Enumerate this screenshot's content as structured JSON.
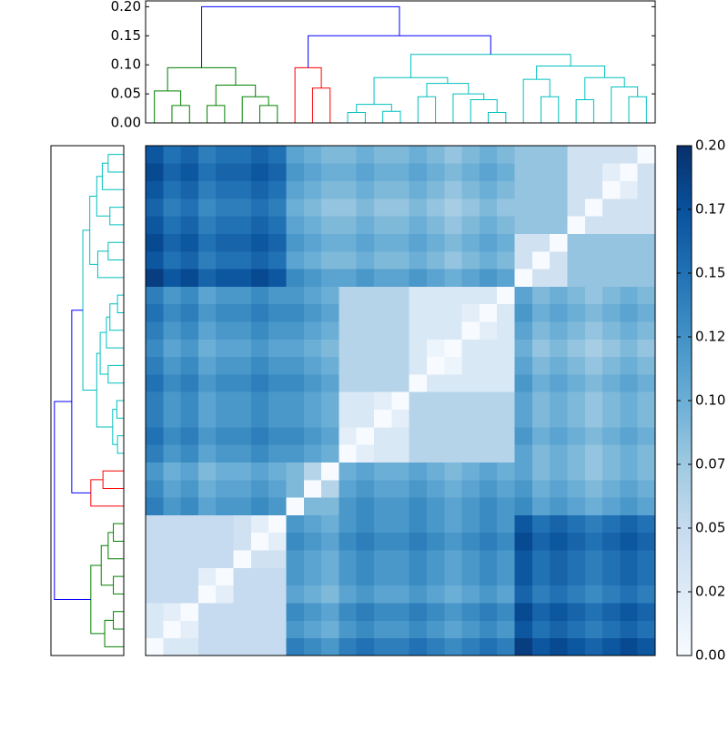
{
  "chart_data": {
    "type": "heatmap",
    "colormap": [
      "#f7fbff",
      "#deebf7",
      "#c6dbef",
      "#9ecae1",
      "#6baed6",
      "#4292c6",
      "#2171b5",
      "#08519c",
      "#08306b"
    ],
    "clim": [
      0,
      0.2
    ],
    "cticks": [
      {
        "value": 0,
        "label": "0.00"
      },
      {
        "value": 0.025,
        "label": "0.02"
      },
      {
        "value": 0.05,
        "label": "0.05"
      },
      {
        "value": 0.075,
        "label": "0.07"
      },
      {
        "value": 0.1,
        "label": "0.10"
      },
      {
        "value": 0.125,
        "label": "0.12"
      },
      {
        "value": 0.15,
        "label": "0.15"
      },
      {
        "value": 0.175,
        "label": "0.17"
      },
      {
        "value": 0.2,
        "label": "0.20"
      }
    ],
    "ylim": [
      0,
      0.21
    ],
    "yticks": [
      {
        "value": 0,
        "label": "0.00"
      },
      {
        "value": 0.05,
        "label": "0.05"
      },
      {
        "value": 0.1,
        "label": "0.10"
      },
      {
        "value": 0.15,
        "label": "0.15"
      },
      {
        "value": 0.2,
        "label": "0.20"
      }
    ],
    "matrix": [
      [
        0,
        0.03,
        0.03,
        0.05,
        0.05,
        0.05,
        0.05,
        0.05,
        0.14,
        0.13,
        0.12,
        0.14,
        0.15,
        0.14,
        0.14,
        0.15,
        0.14,
        0.13,
        0.14,
        0.15,
        0.14,
        0.19,
        0.17,
        0.18,
        0.17,
        0.16,
        0.17,
        0.18,
        0.17
      ],
      [
        0.03,
        0,
        0.02,
        0.05,
        0.05,
        0.05,
        0.05,
        0.05,
        0.12,
        0.11,
        0.1,
        0.12,
        0.13,
        0.12,
        0.12,
        0.13,
        0.12,
        0.11,
        0.12,
        0.13,
        0.12,
        0.17,
        0.15,
        0.16,
        0.15,
        0.14,
        0.15,
        0.16,
        0.15
      ],
      [
        0.03,
        0.02,
        0,
        0.05,
        0.05,
        0.05,
        0.05,
        0.05,
        0.13,
        0.12,
        0.11,
        0.13,
        0.14,
        0.13,
        0.13,
        0.14,
        0.13,
        0.12,
        0.13,
        0.14,
        0.13,
        0.18,
        0.16,
        0.17,
        0.16,
        0.15,
        0.16,
        0.17,
        0.16
      ],
      [
        0.05,
        0.05,
        0.05,
        0,
        0.02,
        0.05,
        0.05,
        0.05,
        0.11,
        0.1,
        0.09,
        0.11,
        0.12,
        0.11,
        0.11,
        0.12,
        0.11,
        0.1,
        0.11,
        0.12,
        0.11,
        0.16,
        0.14,
        0.15,
        0.14,
        0.13,
        0.14,
        0.15,
        0.14
      ],
      [
        0.05,
        0.05,
        0.05,
        0.02,
        0,
        0.05,
        0.05,
        0.05,
        0.12,
        0.11,
        0.1,
        0.12,
        0.13,
        0.12,
        0.12,
        0.13,
        0.12,
        0.11,
        0.12,
        0.13,
        0.12,
        0.17,
        0.15,
        0.16,
        0.15,
        0.14,
        0.15,
        0.16,
        0.15
      ],
      [
        0.05,
        0.05,
        0.05,
        0.05,
        0.05,
        0,
        0.04,
        0.04,
        0.12,
        0.11,
        0.1,
        0.12,
        0.13,
        0.12,
        0.12,
        0.13,
        0.12,
        0.11,
        0.12,
        0.13,
        0.12,
        0.17,
        0.15,
        0.16,
        0.15,
        0.14,
        0.15,
        0.16,
        0.15
      ],
      [
        0.05,
        0.05,
        0.05,
        0.05,
        0.05,
        0.04,
        0,
        0.02,
        0.13,
        0.12,
        0.11,
        0.13,
        0.14,
        0.13,
        0.13,
        0.14,
        0.13,
        0.12,
        0.13,
        0.14,
        0.13,
        0.18,
        0.16,
        0.17,
        0.16,
        0.15,
        0.16,
        0.17,
        0.16
      ],
      [
        0.05,
        0.05,
        0.05,
        0.05,
        0.05,
        0.04,
        0.02,
        0,
        0.12,
        0.11,
        0.1,
        0.12,
        0.13,
        0.12,
        0.12,
        0.13,
        0.12,
        0.11,
        0.12,
        0.13,
        0.12,
        0.17,
        0.15,
        0.16,
        0.15,
        0.14,
        0.15,
        0.16,
        0.15
      ],
      [
        0.14,
        0.12,
        0.13,
        0.11,
        0.12,
        0.12,
        0.13,
        0.12,
        0,
        0.09,
        0.09,
        0.12,
        0.13,
        0.12,
        0.12,
        0.13,
        0.12,
        0.11,
        0.12,
        0.13,
        0.12,
        0.13,
        0.11,
        0.12,
        0.11,
        0.1,
        0.11,
        0.12,
        0.11
      ],
      [
        0.13,
        0.11,
        0.12,
        0.1,
        0.11,
        0.11,
        0.12,
        0.11,
        0.09,
        0,
        0.06,
        0.11,
        0.12,
        0.11,
        0.11,
        0.12,
        0.11,
        0.1,
        0.11,
        0.12,
        0.11,
        0.12,
        0.1,
        0.11,
        0.1,
        0.09,
        0.1,
        0.11,
        0.1
      ],
      [
        0.12,
        0.1,
        0.11,
        0.09,
        0.1,
        0.1,
        0.11,
        0.1,
        0.09,
        0.06,
        0,
        0.1,
        0.11,
        0.1,
        0.1,
        0.11,
        0.1,
        0.09,
        0.1,
        0.11,
        0.1,
        0.11,
        0.09,
        0.1,
        0.09,
        0.08,
        0.09,
        0.1,
        0.09
      ],
      [
        0.14,
        0.12,
        0.13,
        0.11,
        0.12,
        0.12,
        0.13,
        0.12,
        0.12,
        0.11,
        0.1,
        0,
        0.02,
        0.03,
        0.03,
        0.06,
        0.06,
        0.06,
        0.06,
        0.06,
        0.06,
        0.11,
        0.09,
        0.1,
        0.09,
        0.08,
        0.09,
        0.1,
        0.09
      ],
      [
        0.15,
        0.13,
        0.14,
        0.12,
        0.13,
        0.13,
        0.14,
        0.13,
        0.13,
        0.12,
        0.11,
        0.02,
        0,
        0.03,
        0.03,
        0.06,
        0.06,
        0.06,
        0.06,
        0.06,
        0.06,
        0.12,
        0.1,
        0.11,
        0.1,
        0.09,
        0.1,
        0.11,
        0.1
      ],
      [
        0.14,
        0.12,
        0.13,
        0.11,
        0.12,
        0.12,
        0.13,
        0.12,
        0.12,
        0.11,
        0.1,
        0.03,
        0.03,
        0,
        0.02,
        0.06,
        0.06,
        0.06,
        0.06,
        0.06,
        0.06,
        0.11,
        0.09,
        0.1,
        0.09,
        0.08,
        0.09,
        0.1,
        0.09
      ],
      [
        0.14,
        0.12,
        0.13,
        0.11,
        0.12,
        0.12,
        0.13,
        0.12,
        0.12,
        0.11,
        0.1,
        0.03,
        0.03,
        0.02,
        0,
        0.06,
        0.06,
        0.06,
        0.06,
        0.06,
        0.06,
        0.11,
        0.09,
        0.1,
        0.09,
        0.08,
        0.09,
        0.1,
        0.09
      ],
      [
        0.15,
        0.13,
        0.14,
        0.12,
        0.13,
        0.13,
        0.14,
        0.13,
        0.13,
        0.12,
        0.11,
        0.06,
        0.06,
        0.06,
        0.06,
        0,
        0.03,
        0.03,
        0.03,
        0.03,
        0.03,
        0.12,
        0.1,
        0.11,
        0.1,
        0.09,
        0.1,
        0.11,
        0.1
      ],
      [
        0.14,
        0.12,
        0.13,
        0.11,
        0.12,
        0.12,
        0.13,
        0.12,
        0.12,
        0.11,
        0.1,
        0.06,
        0.06,
        0.06,
        0.06,
        0.03,
        0,
        0.01,
        0.03,
        0.03,
        0.03,
        0.11,
        0.09,
        0.1,
        0.09,
        0.08,
        0.09,
        0.1,
        0.09
      ],
      [
        0.13,
        0.11,
        0.12,
        0.1,
        0.11,
        0.11,
        0.12,
        0.11,
        0.11,
        0.1,
        0.09,
        0.06,
        0.06,
        0.06,
        0.06,
        0.03,
        0.01,
        0,
        0.03,
        0.03,
        0.03,
        0.1,
        0.08,
        0.09,
        0.08,
        0.07,
        0.08,
        0.09,
        0.08
      ],
      [
        0.14,
        0.12,
        0.13,
        0.11,
        0.12,
        0.12,
        0.13,
        0.12,
        0.12,
        0.11,
        0.1,
        0.06,
        0.06,
        0.06,
        0.06,
        0.03,
        0.03,
        0.03,
        0,
        0.02,
        0.03,
        0.11,
        0.09,
        0.1,
        0.09,
        0.08,
        0.09,
        0.1,
        0.09
      ],
      [
        0.15,
        0.13,
        0.14,
        0.12,
        0.13,
        0.13,
        0.14,
        0.13,
        0.13,
        0.12,
        0.11,
        0.06,
        0.06,
        0.06,
        0.06,
        0.03,
        0.03,
        0.03,
        0.02,
        0,
        0.03,
        0.12,
        0.1,
        0.11,
        0.1,
        0.09,
        0.1,
        0.11,
        0.1
      ],
      [
        0.14,
        0.12,
        0.13,
        0.11,
        0.12,
        0.12,
        0.13,
        0.12,
        0.12,
        0.11,
        0.1,
        0.06,
        0.06,
        0.06,
        0.06,
        0.03,
        0.03,
        0.03,
        0.03,
        0.03,
        0,
        0.11,
        0.09,
        0.1,
        0.09,
        0.08,
        0.09,
        0.1,
        0.09
      ],
      [
        0.19,
        0.17,
        0.18,
        0.16,
        0.17,
        0.17,
        0.18,
        0.17,
        0.13,
        0.12,
        0.11,
        0.11,
        0.12,
        0.11,
        0.11,
        0.12,
        0.11,
        0.1,
        0.11,
        0.12,
        0.11,
        0,
        0.04,
        0.04,
        0.08,
        0.08,
        0.08,
        0.08,
        0.08
      ],
      [
        0.17,
        0.15,
        0.16,
        0.14,
        0.15,
        0.15,
        0.16,
        0.15,
        0.11,
        0.1,
        0.09,
        0.09,
        0.1,
        0.09,
        0.09,
        0.1,
        0.09,
        0.08,
        0.09,
        0.1,
        0.09,
        0.04,
        0,
        0.04,
        0.08,
        0.08,
        0.08,
        0.08,
        0.08
      ],
      [
        0.18,
        0.16,
        0.17,
        0.15,
        0.16,
        0.16,
        0.17,
        0.16,
        0.12,
        0.11,
        0.1,
        0.1,
        0.11,
        0.1,
        0.1,
        0.11,
        0.1,
        0.09,
        0.1,
        0.11,
        0.1,
        0.04,
        0.04,
        0,
        0.08,
        0.08,
        0.08,
        0.08,
        0.08
      ],
      [
        0.17,
        0.15,
        0.16,
        0.14,
        0.15,
        0.15,
        0.16,
        0.15,
        0.11,
        0.1,
        0.09,
        0.09,
        0.1,
        0.09,
        0.09,
        0.1,
        0.09,
        0.08,
        0.09,
        0.1,
        0.09,
        0.08,
        0.08,
        0.08,
        0,
        0.04,
        0.04,
        0.04,
        0.04
      ],
      [
        0.16,
        0.14,
        0.15,
        0.13,
        0.14,
        0.14,
        0.15,
        0.14,
        0.1,
        0.09,
        0.08,
        0.08,
        0.09,
        0.08,
        0.08,
        0.09,
        0.08,
        0.07,
        0.08,
        0.09,
        0.08,
        0.08,
        0.08,
        0.08,
        0.04,
        0,
        0.04,
        0.04,
        0.04
      ],
      [
        0.17,
        0.15,
        0.16,
        0.14,
        0.15,
        0.15,
        0.16,
        0.15,
        0.11,
        0.1,
        0.09,
        0.09,
        0.1,
        0.09,
        0.09,
        0.1,
        0.09,
        0.08,
        0.09,
        0.1,
        0.09,
        0.08,
        0.08,
        0.08,
        0.04,
        0.04,
        0,
        0.02,
        0.04
      ],
      [
        0.18,
        0.16,
        0.17,
        0.15,
        0.16,
        0.16,
        0.17,
        0.16,
        0.12,
        0.11,
        0.1,
        0.1,
        0.11,
        0.1,
        0.1,
        0.11,
        0.1,
        0.09,
        0.1,
        0.11,
        0.1,
        0.08,
        0.08,
        0.08,
        0.04,
        0.04,
        0.02,
        0,
        0.04
      ],
      [
        0.17,
        0.15,
        0.16,
        0.14,
        0.15,
        0.15,
        0.16,
        0.15,
        0.11,
        0.1,
        0.09,
        0.09,
        0.1,
        0.09,
        0.09,
        0.1,
        0.09,
        0.08,
        0.09,
        0.1,
        0.09,
        0.08,
        0.08,
        0.08,
        0.04,
        0.04,
        0.04,
        0.04,
        0
      ]
    ],
    "linkage": [
      {
        "left": 1,
        "right": 2,
        "height": 0.03,
        "color": "#008000"
      },
      {
        "left": 0,
        "right": 29,
        "height": 0.055,
        "color": "#008000"
      },
      {
        "left": 3,
        "right": 4,
        "height": 0.03,
        "color": "#008000"
      },
      {
        "left": 6,
        "right": 7,
        "height": 0.03,
        "color": "#008000"
      },
      {
        "left": 5,
        "right": 32,
        "height": 0.045,
        "color": "#008000"
      },
      {
        "left": 31,
        "right": 33,
        "height": 0.065,
        "color": "#008000"
      },
      {
        "left": 30,
        "right": 34,
        "height": 0.095,
        "color": "#008000"
      },
      {
        "left": 9,
        "right": 10,
        "height": 0.06,
        "color": "#ff0000"
      },
      {
        "left": 8,
        "right": 36,
        "height": 0.095,
        "color": "#ff0000"
      },
      {
        "left": 11,
        "right": 12,
        "height": 0.018,
        "color": "#00bfbf"
      },
      {
        "left": 13,
        "right": 14,
        "height": 0.02,
        "color": "#00bfbf"
      },
      {
        "left": 38,
        "right": 39,
        "height": 0.032,
        "color": "#00bfbf"
      },
      {
        "left": 15,
        "right": 16,
        "height": 0.045,
        "color": "#00bfbf"
      },
      {
        "left": 19,
        "right": 20,
        "height": 0.018,
        "color": "#00bfbf"
      },
      {
        "left": 18,
        "right": 42,
        "height": 0.04,
        "color": "#00bfbf"
      },
      {
        "left": 17,
        "right": 43,
        "height": 0.05,
        "color": "#00bfbf"
      },
      {
        "left": 41,
        "right": 44,
        "height": 0.068,
        "color": "#00bfbf"
      },
      {
        "left": 40,
        "right": 45,
        "height": 0.078,
        "color": "#00bfbf"
      },
      {
        "left": 22,
        "right": 23,
        "height": 0.045,
        "color": "#00bfbf"
      },
      {
        "left": 21,
        "right": 47,
        "height": 0.075,
        "color": "#00bfbf"
      },
      {
        "left": 24,
        "right": 25,
        "height": 0.04,
        "color": "#00bfbf"
      },
      {
        "left": 27,
        "right": 28,
        "height": 0.045,
        "color": "#00bfbf"
      },
      {
        "left": 26,
        "right": 50,
        "height": 0.062,
        "color": "#00bfbf"
      },
      {
        "left": 49,
        "right": 51,
        "height": 0.078,
        "color": "#00bfbf"
      },
      {
        "left": 48,
        "right": 52,
        "height": 0.098,
        "color": "#00bfbf"
      },
      {
        "left": 46,
        "right": 53,
        "height": 0.118,
        "color": "#00bfbf"
      },
      {
        "left": 37,
        "right": 54,
        "height": 0.15,
        "color": "#0000ff"
      },
      {
        "left": 35,
        "right": 55,
        "height": 0.2,
        "color": "#0000ff"
      }
    ]
  }
}
